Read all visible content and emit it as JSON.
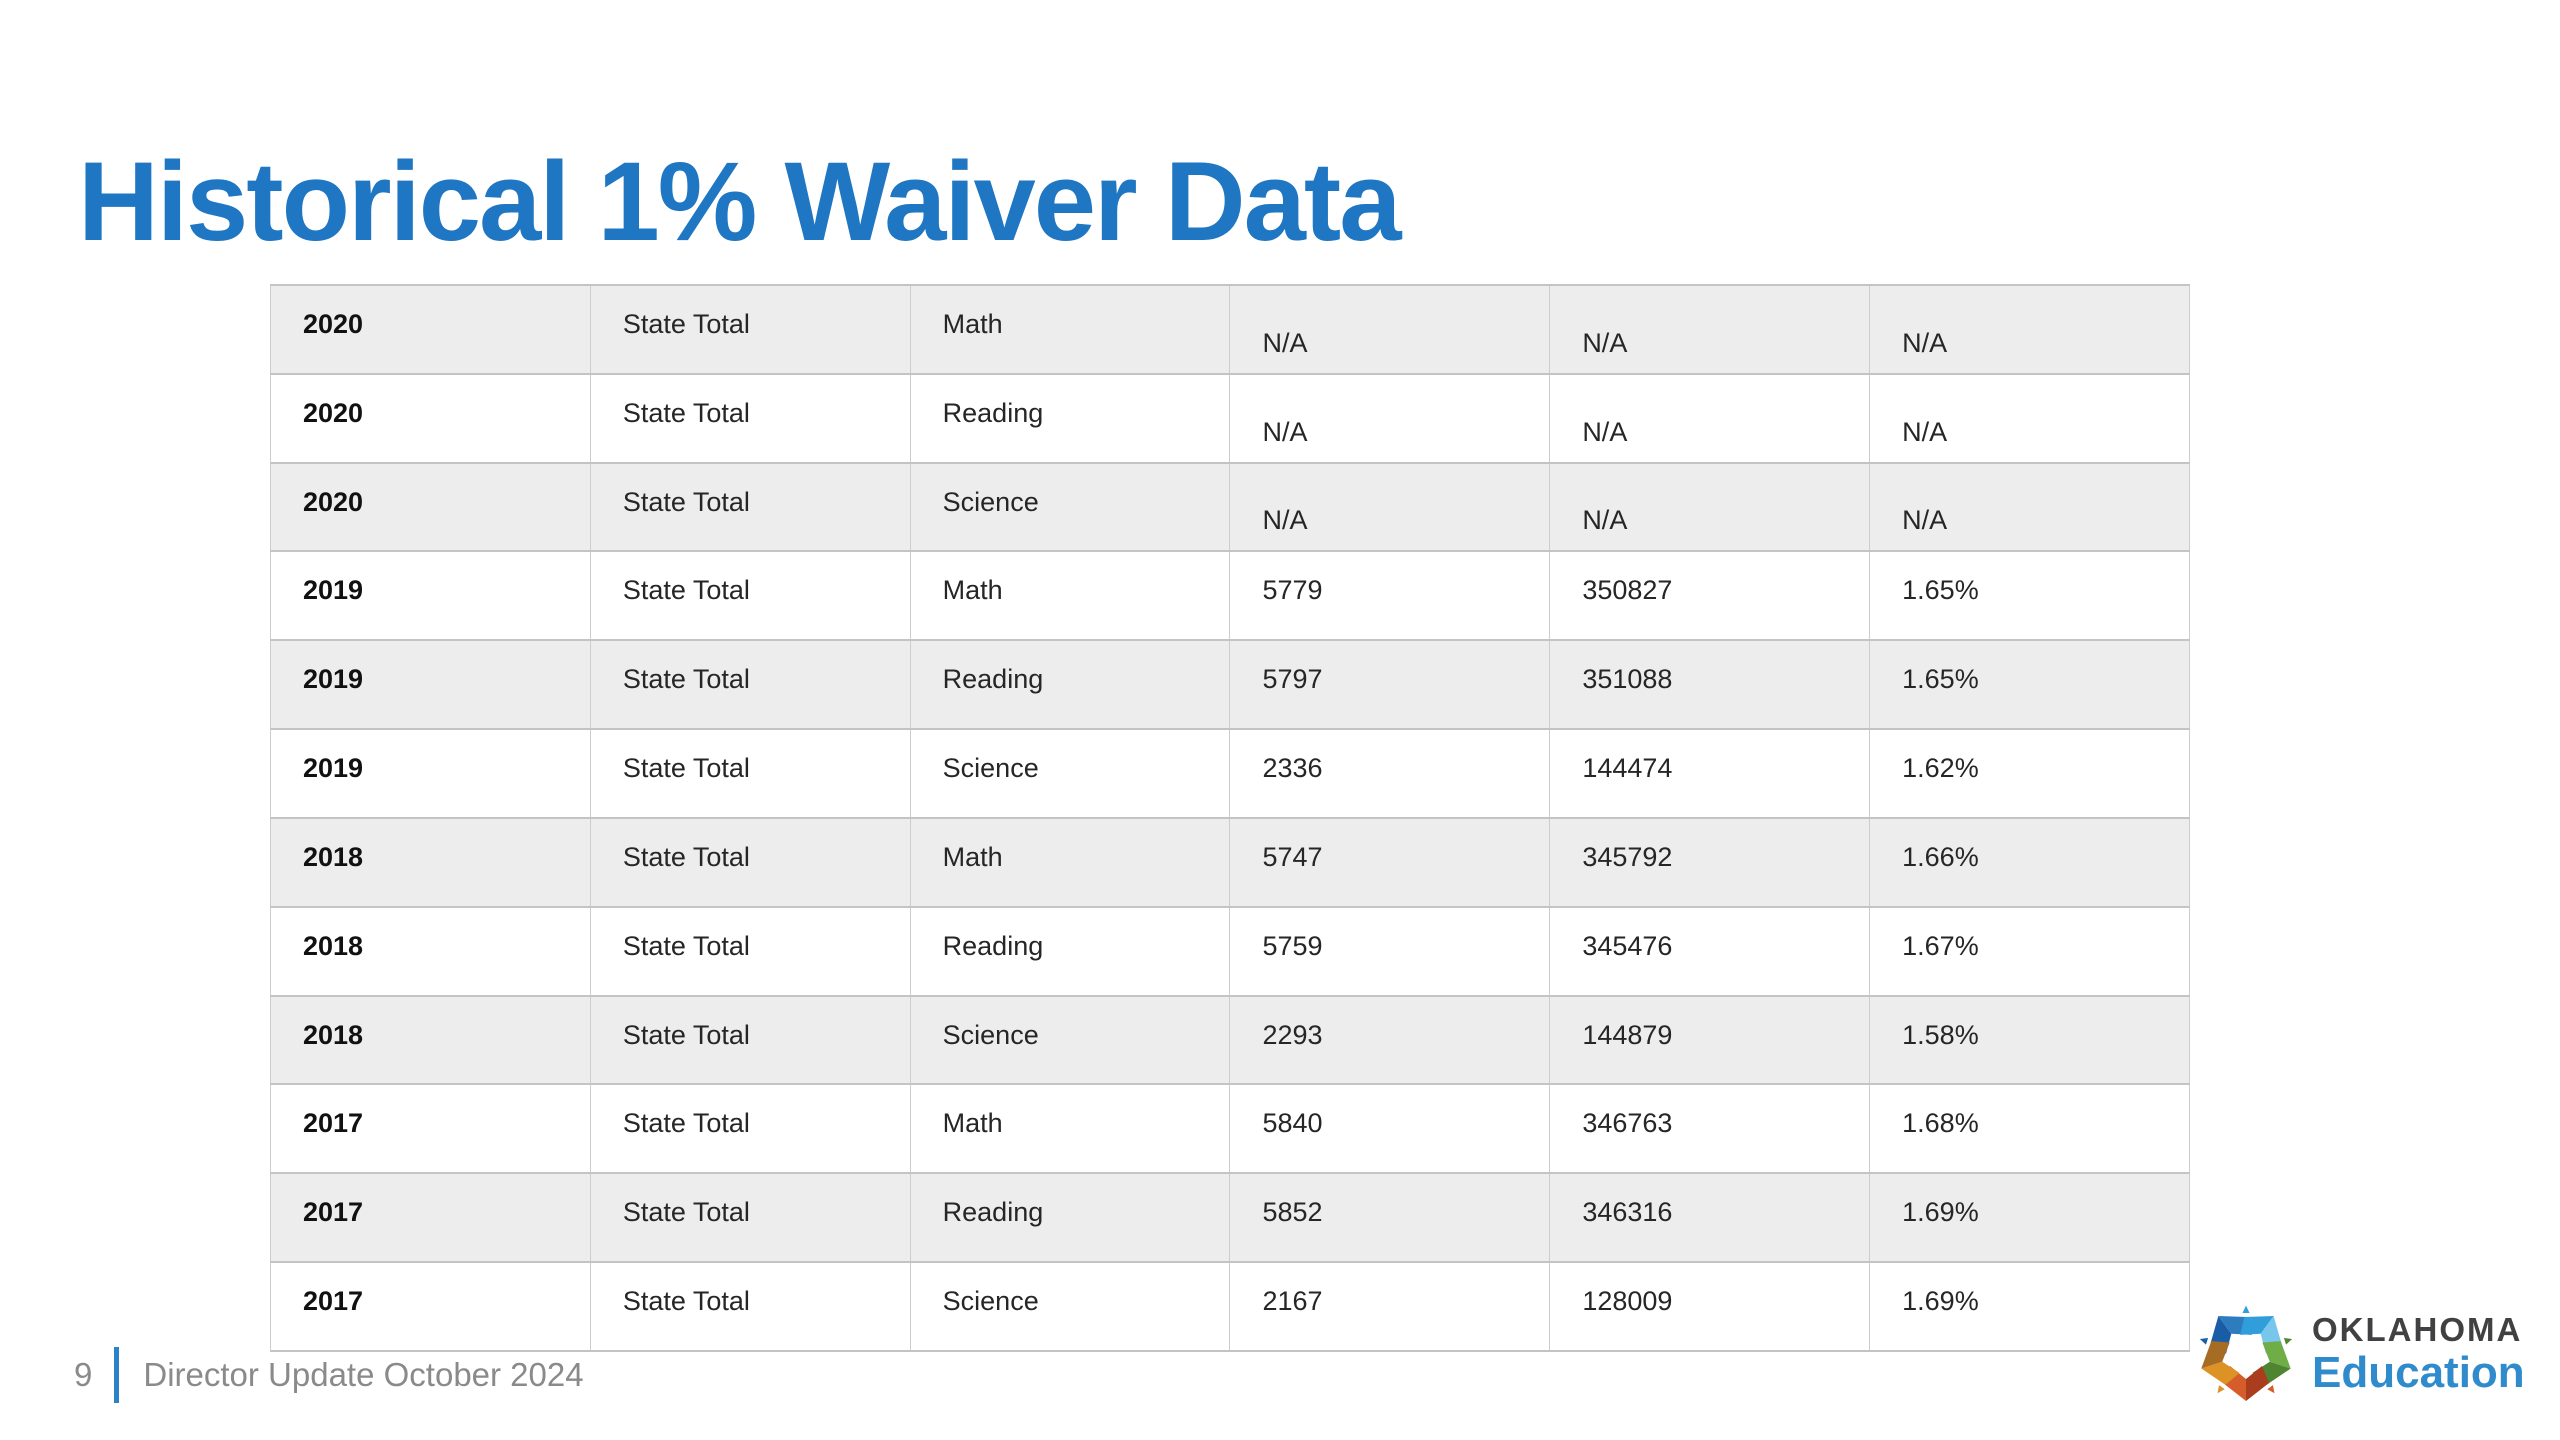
{
  "slide": {
    "title": "Historical 1% Waiver Data"
  },
  "theme": {
    "title_color": "#1f76c2",
    "accent_blue": "#2b82c6",
    "row_stripe_color": "#ededed",
    "table_border_color": "#c4c4c4",
    "footer_text_color": "#8a8a8a"
  },
  "table": {
    "rows": [
      [
        "2020",
        "State Total",
        "Math",
        "N/A",
        "N/A",
        "N/A"
      ],
      [
        "2020",
        "State Total",
        "Reading",
        "N/A",
        "N/A",
        "N/A"
      ],
      [
        "2020",
        "State Total",
        "Science",
        "N/A",
        "N/A",
        "N/A"
      ],
      [
        "2019",
        "State Total",
        "Math",
        "5779",
        "350827",
        "1.65%"
      ],
      [
        "2019",
        "State Total",
        "Reading",
        "5797",
        "351088",
        "1.65%"
      ],
      [
        "2019",
        "State Total",
        "Science",
        "2336",
        "144474",
        "1.62%"
      ],
      [
        "2018",
        "State Total",
        "Math",
        "5747",
        "345792",
        "1.66%"
      ],
      [
        "2018",
        "State Total",
        "Reading",
        "5759",
        "345476",
        "1.67%"
      ],
      [
        "2018",
        "State Total",
        "Science",
        "2293",
        "144879",
        "1.58%"
      ],
      [
        "2017",
        "State Total",
        "Math",
        "5840",
        "346763",
        "1.68%"
      ],
      [
        "2017",
        "State Total",
        "Reading",
        "5852",
        "346316",
        "1.69%"
      ],
      [
        "2017",
        "State Total",
        "Science",
        "2167",
        "128009",
        "1.69%"
      ]
    ]
  },
  "footer": {
    "page_number": "9",
    "text": "Director Update October 2024"
  },
  "logo": {
    "line1": "OKLAHOMA",
    "line2": "Education",
    "line1_color": "#414042",
    "line2_color": "#2f8bcb",
    "star_colors": [
      "#1a5ca6",
      "#2d7cc0",
      "#2f9edb",
      "#79c6ec",
      "#4f8530",
      "#6fae46",
      "#d55c2b",
      "#a93d1d",
      "#a76c24",
      "#dd9226"
    ]
  }
}
